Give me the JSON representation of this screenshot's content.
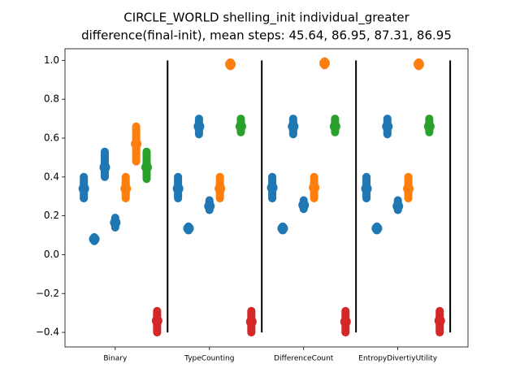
{
  "chart_data": {
    "type": "scatter",
    "title": "CIRCLE_WORLD shelling_init individual_greater",
    "subtitle": "difference(final-init), mean steps: 45.64, 86.95, 87.31, 86.95",
    "xlim": [
      -1.8,
      36.7
    ],
    "ylim": [
      -0.475,
      1.06
    ],
    "xticks": [
      {
        "value": 3,
        "label": "Binary"
      },
      {
        "value": 12,
        "label": "TypeCounting"
      },
      {
        "value": 21,
        "label": "DifferenceCount"
      },
      {
        "value": 30,
        "label": "EntropyDivertiyUtility"
      }
    ],
    "yticks": [
      {
        "value": -0.4,
        "label": "−0.4"
      },
      {
        "value": -0.2,
        "label": "−0.2"
      },
      {
        "value": 0,
        "label": "0.0"
      },
      {
        "value": 0.2,
        "label": "0.2"
      },
      {
        "value": 0.4,
        "label": "0.4"
      },
      {
        "value": 0.6,
        "label": "0.6"
      },
      {
        "value": 0.8,
        "label": "0.8"
      },
      {
        "value": 1.0,
        "label": "1.0"
      }
    ],
    "separators": {
      "x": [
        8,
        17,
        26,
        35
      ],
      "range": [
        -0.4,
        1.0
      ],
      "color": "#000000"
    },
    "series": [
      {
        "color": "#1f77b4",
        "x": [
          0,
          1,
          2,
          3,
          9,
          10,
          11,
          12,
          18,
          19,
          20,
          21,
          27,
          28,
          29,
          30
        ],
        "values": [
          0.34,
          0.08,
          0.45,
          0.165,
          0.34,
          0.135,
          0.66,
          0.25,
          0.345,
          0.135,
          0.66,
          0.255,
          0.34,
          0.135,
          0.66,
          0.25
        ],
        "low": [
          0.29,
          0.07,
          0.4,
          0.14,
          0.29,
          0.125,
          0.62,
          0.23,
          0.29,
          0.125,
          0.62,
          0.235,
          0.29,
          0.125,
          0.62,
          0.23
        ],
        "high": [
          0.4,
          0.09,
          0.53,
          0.19,
          0.4,
          0.145,
          0.7,
          0.28,
          0.4,
          0.145,
          0.7,
          0.28,
          0.4,
          0.145,
          0.7,
          0.28
        ]
      },
      {
        "color": "#ff7f0e",
        "x": [
          4,
          5,
          13,
          14,
          22,
          23,
          31,
          32
        ],
        "values": [
          0.34,
          0.57,
          0.34,
          0.98,
          0.345,
          0.985,
          0.34,
          0.98
        ],
        "low": [
          0.29,
          0.48,
          0.29,
          0.97,
          0.29,
          0.975,
          0.29,
          0.97
        ],
        "high": [
          0.4,
          0.66,
          0.4,
          0.99,
          0.4,
          0.995,
          0.4,
          0.99
        ]
      },
      {
        "color": "#2ca02c",
        "x": [
          6,
          15,
          24,
          33
        ],
        "values": [
          0.45,
          0.66,
          0.66,
          0.66
        ],
        "low": [
          0.39,
          0.63,
          0.63,
          0.63
        ],
        "high": [
          0.53,
          0.7,
          0.7,
          0.7
        ]
      },
      {
        "color": "#d62728",
        "x": [
          7,
          16,
          25,
          34
        ],
        "values": [
          -0.34,
          -0.345,
          -0.345,
          -0.34
        ],
        "low": [
          -0.4,
          -0.4,
          -0.4,
          -0.4
        ],
        "high": [
          -0.29,
          -0.29,
          -0.29,
          -0.29
        ]
      }
    ]
  }
}
